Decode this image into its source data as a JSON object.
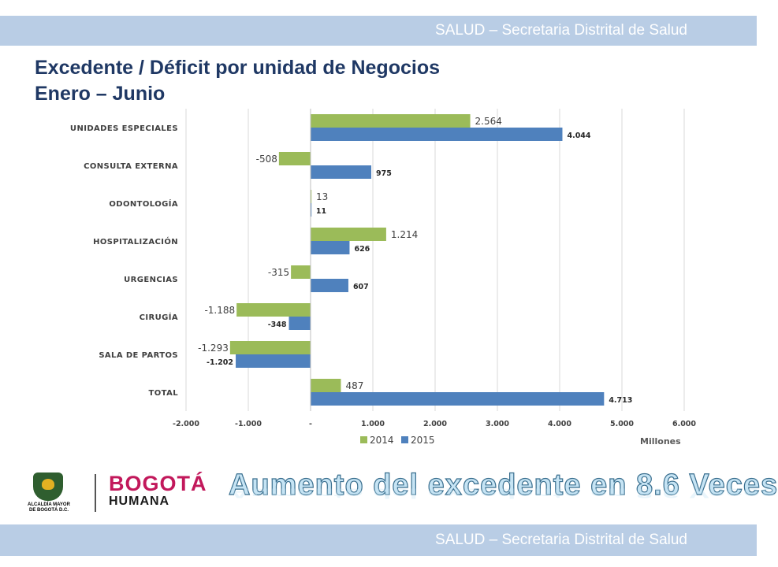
{
  "header": {
    "band_text": "SALUD – Secretaria Distrital de Salud"
  },
  "footer": {
    "band_text": "SALUD – Secretaria Distrital de Salud"
  },
  "slide": {
    "title_line1": "Excedente / Déficit por unidad de Negocios",
    "title_line2": "Enero – Junio"
  },
  "branding": {
    "alcaldia": "ALCALDÍA MAYOR DE BOGOTÁ D.C.",
    "bogota": "BOGOTÁ",
    "humana": "HUMANA"
  },
  "headline": "Aumento del excedente en 8.6 Veces",
  "chart_data": {
    "type": "bar",
    "orientation": "horizontal",
    "categories": [
      "UNIDADES ESPECIALES",
      "CONSULTA EXTERNA",
      "ODONTOLOGÍA",
      "HOSPITALIZACIÓN",
      "URGENCIAS",
      "CIRUGÍA",
      "SALA DE PARTOS",
      "TOTAL"
    ],
    "series": [
      {
        "name": "2014",
        "color": "#9bbb59",
        "values": [
          2564,
          -508,
          13,
          1214,
          -315,
          -1188,
          -1293,
          487
        ],
        "labels": [
          "2.564",
          "-508",
          "13",
          "1.214",
          "-315",
          "-1.188",
          "-1.293",
          "487"
        ]
      },
      {
        "name": "2015",
        "color": "#4f81bd",
        "values": [
          4044,
          975,
          11,
          626,
          607,
          -348,
          -1202,
          4713
        ],
        "labels": [
          "4.044",
          "975",
          "11",
          "626",
          "607",
          "-348",
          "-1.202",
          "4.713"
        ]
      }
    ],
    "xlim": [
      -2000,
      6000
    ],
    "xticks": [
      -2000,
      -1000,
      0,
      1000,
      2000,
      3000,
      4000,
      5000,
      6000
    ],
    "xtick_labels": [
      "-2.000",
      "-1.000",
      "-",
      "1.000",
      "2.000",
      "3.000",
      "4.000",
      "5.000",
      "6.000"
    ],
    "xlabel": "Millones",
    "ylabel": "",
    "grid": true,
    "legend": "bottom"
  }
}
